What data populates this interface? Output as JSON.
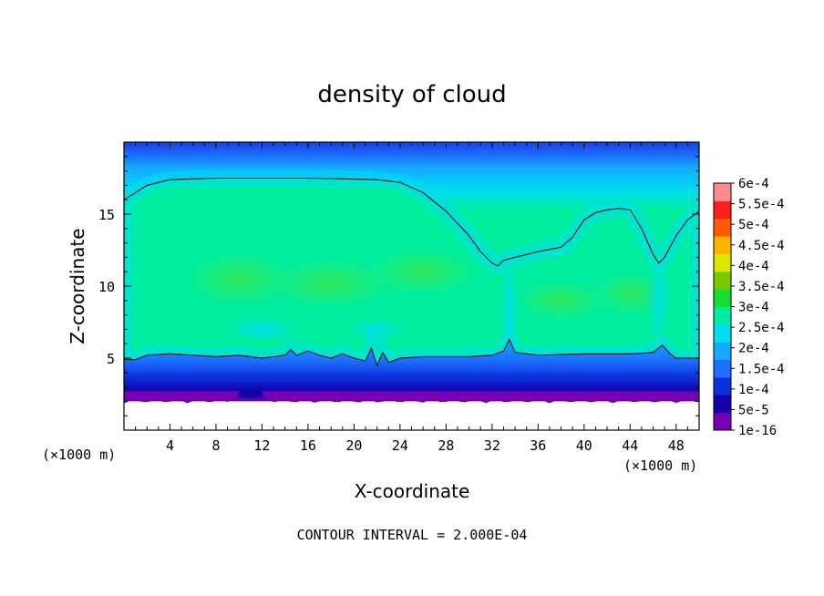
{
  "chart_data": {
    "type": "heatmap",
    "title": "density of cloud",
    "xlabel": "X-coordinate",
    "ylabel": "Z-coordinate",
    "x_unit": "(×1000 m)",
    "z_unit": "(×1000 m)",
    "xlim": [
      0,
      50
    ],
    "ylim": [
      0,
      20
    ],
    "x_ticks": [
      4,
      8,
      12,
      16,
      20,
      24,
      28,
      32,
      36,
      40,
      44,
      48
    ],
    "y_ticks": [
      5,
      10,
      15
    ],
    "contour_interval_text": "CONTOUR INTERVAL = 2.000E-04",
    "colorbar": {
      "levels": [
        "1e-16",
        "5e-5",
        "1e-4",
        "1.5e-4",
        "2e-4",
        "2.5e-4",
        "3e-4",
        "3.5e-4",
        "4e-4",
        "4.5e-4",
        "5e-4",
        "5.5e-4",
        "6e-4"
      ],
      "colors": [
        "#7a00b4",
        "#1400aa",
        "#0a32dc",
        "#1e6eff",
        "#14aaff",
        "#00dcf0",
        "#00eea0",
        "#14dc32",
        "#78c800",
        "#dce600",
        "#ffb400",
        "#ff5a00",
        "#ff1e1e",
        "#ff8c8c"
      ]
    },
    "contours": [
      {
        "level": "2e-4",
        "points": [
          [
            0,
            16.0
          ],
          [
            2,
            17.0
          ],
          [
            4,
            17.4
          ],
          [
            8,
            17.5
          ],
          [
            16,
            17.5
          ],
          [
            22,
            17.4
          ],
          [
            24,
            17.2
          ],
          [
            26,
            16.5
          ],
          [
            28,
            15.2
          ],
          [
            30,
            13.5
          ],
          [
            31,
            12.4
          ],
          [
            32,
            11.6
          ],
          [
            32.5,
            11.4
          ],
          [
            33,
            11.8
          ],
          [
            34,
            12.0
          ],
          [
            36,
            12.4
          ],
          [
            38,
            12.7
          ],
          [
            39,
            13.4
          ],
          [
            40,
            14.6
          ],
          [
            41,
            15.1
          ],
          [
            42,
            15.3
          ],
          [
            43,
            15.4
          ],
          [
            44,
            15.3
          ],
          [
            45,
            14.0
          ],
          [
            46,
            12.2
          ],
          [
            46.5,
            11.6
          ],
          [
            47,
            12.0
          ],
          [
            48,
            13.5
          ],
          [
            49,
            14.6
          ],
          [
            50,
            15.2
          ]
        ]
      },
      {
        "level": "2e-4",
        "points": [
          [
            0,
            4.9
          ],
          [
            1,
            4.9
          ],
          [
            2,
            5.2
          ],
          [
            4,
            5.3
          ],
          [
            6,
            5.2
          ],
          [
            8,
            5.1
          ],
          [
            10,
            5.2
          ],
          [
            12,
            5.0
          ],
          [
            14,
            5.2
          ],
          [
            14.5,
            5.6
          ],
          [
            15,
            5.2
          ],
          [
            16,
            5.5
          ],
          [
            17,
            5.2
          ],
          [
            18,
            5.0
          ],
          [
            19,
            5.3
          ],
          [
            20,
            5.0
          ],
          [
            21,
            4.8
          ],
          [
            21.5,
            5.7
          ],
          [
            22,
            4.5
          ],
          [
            22.5,
            5.4
          ],
          [
            23,
            4.7
          ],
          [
            24,
            5.0
          ],
          [
            26,
            5.1
          ],
          [
            28,
            5.1
          ],
          [
            30,
            5.1
          ],
          [
            32,
            5.2
          ],
          [
            33,
            5.5
          ],
          [
            33.5,
            6.3
          ],
          [
            34,
            5.4
          ],
          [
            36,
            5.2
          ],
          [
            40,
            5.3
          ],
          [
            44,
            5.3
          ],
          [
            46,
            5.4
          ],
          [
            46.8,
            5.9
          ],
          [
            47.5,
            5.3
          ],
          [
            48,
            5.0
          ],
          [
            50,
            5.0
          ]
        ]
      }
    ],
    "regions": [
      {
        "level_index": 0,
        "desc": "surface-purple",
        "z": [
          1.8,
          2.6
        ]
      },
      {
        "level_index": 1,
        "desc": "dark-blue-base",
        "z": [
          2.3,
          3.4
        ]
      },
      {
        "level_index": 2,
        "desc": "blue",
        "z": [
          3.0,
          4.2
        ]
      },
      {
        "level_index": 3,
        "desc": "light-blue",
        "z": [
          3.8,
          5.0
        ]
      },
      {
        "level_index": 4,
        "desc": "cyan",
        "z": [
          4.8,
          5.6
        ]
      },
      {
        "level_index": 6,
        "desc": "green-core",
        "z": [
          5.5,
          17.0
        ]
      }
    ]
  }
}
